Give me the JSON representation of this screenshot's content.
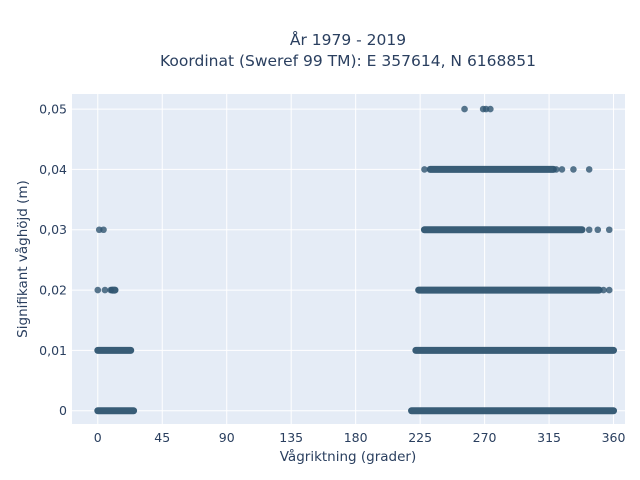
{
  "chart_data": {
    "type": "scatter",
    "title": [
      "År 1979 - 2019",
      "Koordinat (Sweref 99 TM): E 357614, N 6168851"
    ],
    "xlabel": "Vågriktning (grader)",
    "ylabel": "Signifikant våghöjd (m)",
    "xlim": [
      -18,
      368
    ],
    "ylim": [
      -0.0022,
      0.0525
    ],
    "xticks": [
      0,
      45,
      90,
      135,
      180,
      225,
      270,
      315,
      360
    ],
    "xtick_labels": [
      "0",
      "45",
      "90",
      "135",
      "180",
      "225",
      "270",
      "315",
      "360"
    ],
    "yticks": [
      0,
      0.01,
      0.02,
      0.03,
      0.04,
      0.05
    ],
    "ytick_labels": [
      "0",
      "0,01",
      "0,02",
      "0,03",
      "0,04",
      "0,05"
    ],
    "grid": true,
    "marker_color": "#2f5570",
    "plot_bg": "#e5ecf6",
    "series": [
      {
        "bands": [
          {
            "y": 0.0,
            "ranges": [
              [
                0,
                25
              ],
              [
                219,
                360
              ]
            ]
          },
          {
            "y": 0.01,
            "ranges": [
              [
                0,
                23
              ],
              [
                222,
                360
              ]
            ]
          },
          {
            "y": 0.02,
            "ranges": [
              [
                10,
                12
              ],
              [
                224,
                350
              ]
            ]
          },
          {
            "y": 0.03,
            "ranges": [
              [
                228,
                338
              ]
            ]
          },
          {
            "y": 0.04,
            "ranges": [
              [
                232,
                318
              ]
            ]
          }
        ],
        "points": [
          {
            "x": 0,
            "y": 0.02
          },
          {
            "x": 5,
            "y": 0.02
          },
          {
            "x": 9,
            "y": 0.02
          },
          {
            "x": 353,
            "y": 0.02
          },
          {
            "x": 357,
            "y": 0.02
          },
          {
            "x": 1,
            "y": 0.03
          },
          {
            "x": 4,
            "y": 0.03
          },
          {
            "x": 343,
            "y": 0.03
          },
          {
            "x": 349,
            "y": 0.03
          },
          {
            "x": 357,
            "y": 0.03
          },
          {
            "x": 228,
            "y": 0.04
          },
          {
            "x": 320,
            "y": 0.04
          },
          {
            "x": 324,
            "y": 0.04
          },
          {
            "x": 332,
            "y": 0.04
          },
          {
            "x": 343,
            "y": 0.04
          },
          {
            "x": 256,
            "y": 0.05
          },
          {
            "x": 269,
            "y": 0.05
          },
          {
            "x": 271,
            "y": 0.05
          },
          {
            "x": 274,
            "y": 0.05
          }
        ]
      }
    ]
  }
}
